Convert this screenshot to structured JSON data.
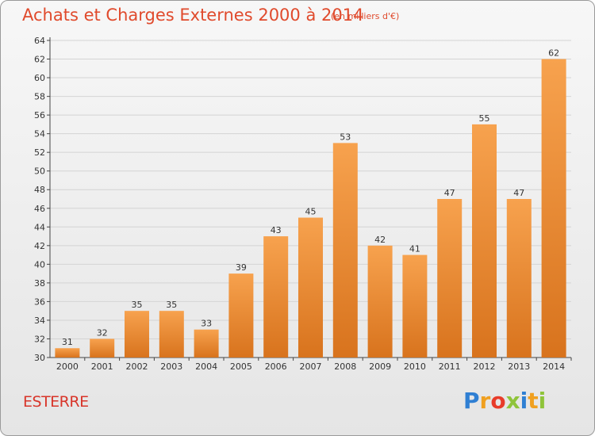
{
  "header": {
    "title": "Achats et Charges Externes 2000 à 2014",
    "unit": "(en milliers d'€)"
  },
  "footer": {
    "commune": "ESTERRE",
    "logo_letters": [
      "P",
      "r",
      "o",
      "x",
      "i",
      "t",
      "i"
    ],
    "logo_colors": [
      "#2f7fd3",
      "#f0a020",
      "#e83c2a",
      "#8fc43a",
      "#2f7fd3",
      "#f0a020",
      "#8fc43a"
    ]
  },
  "chart_data": {
    "type": "bar",
    "title": "Achats et Charges Externes 2000 à 2014",
    "categories": [
      "2000",
      "2001",
      "2002",
      "2003",
      "2004",
      "2005",
      "2006",
      "2007",
      "2008",
      "2009",
      "2010",
      "2011",
      "2012",
      "2013",
      "2014"
    ],
    "values": [
      31,
      32,
      35,
      35,
      33,
      39,
      43,
      45,
      53,
      42,
      41,
      47,
      55,
      47,
      62
    ],
    "ylim": [
      30,
      64
    ],
    "yticks": [
      30,
      32,
      34,
      36,
      38,
      40,
      42,
      44,
      46,
      48,
      50,
      52,
      54,
      56,
      58,
      60,
      62,
      64
    ],
    "grid": true,
    "colors": {
      "bar_top": "#f7a24e",
      "bar_bottom": "#d8731d",
      "grid": "#d4d4d4"
    }
  }
}
